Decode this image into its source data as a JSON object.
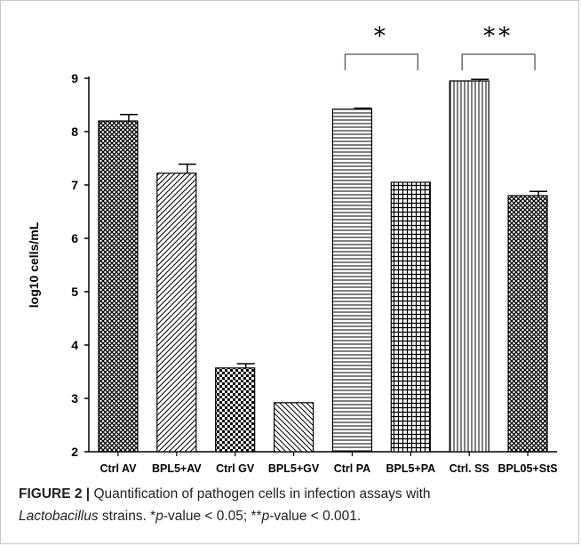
{
  "chart_data": {
    "type": "bar",
    "ylabel": "log10 cells/mL",
    "ylim": [
      2,
      9
    ],
    "yticks": [
      "2",
      "3",
      "4",
      "5",
      "6",
      "7",
      "8",
      "9"
    ],
    "categories": [
      "Ctrl AV",
      "BPL5+AV",
      "Ctrl GV",
      "BPL5+GV",
      "Ctrl PA",
      "BPL5+PA",
      "Ctrl. SS",
      "BPL05+StS"
    ],
    "values": [
      8.2,
      7.22,
      3.57,
      2.92,
      8.42,
      7.05,
      8.95,
      6.8
    ],
    "errors": [
      0.12,
      0.17,
      0.08,
      0.0,
      0.02,
      0.0,
      0.03,
      0.08
    ],
    "patterns": [
      "crosshatch",
      "diagonal",
      "checker",
      "diagonal-back",
      "horizontal",
      "grid",
      "vertical",
      "crosshatch"
    ],
    "significance": [
      {
        "from": 4,
        "to": 5,
        "label": "*"
      },
      {
        "from": 6,
        "to": 7,
        "label": "**"
      }
    ]
  },
  "caption": {
    "label": "FIGURE 2 |",
    "text1": " Quantification of pathogen cells in infection assays with",
    "genus": "Lactobacillus",
    "text2": " strains. *",
    "p1": "p",
    "text3": "-value < 0.05; **",
    "p2": "p",
    "text4": "-value < 0.001."
  }
}
